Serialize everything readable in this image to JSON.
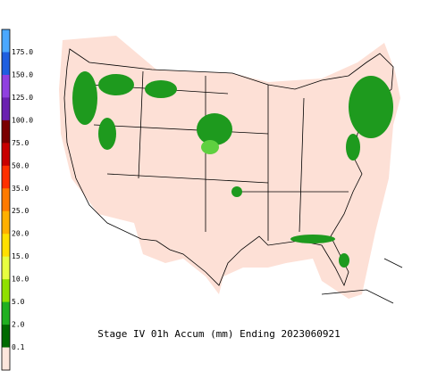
{
  "title": "Stage IV 01h Accum (mm) Ending 2023060921",
  "legend": {
    "labels": [
      "175.0",
      "150.0",
      "125.0",
      "100.0",
      "75.0",
      "50.0",
      "35.0",
      "25.0",
      "20.0",
      "15.0",
      "10.0",
      "5.0",
      "2.0",
      "0.1"
    ],
    "colors": [
      "#4aa8ff",
      "#1f5fe0",
      "#9040e0",
      "#6a20b0",
      "#7a0000",
      "#c80000",
      "#ff3000",
      "#ff7a00",
      "#ffb000",
      "#ffe000",
      "#e8ff40",
      "#90e000",
      "#20b020",
      "#006a00",
      "#fde6dc"
    ]
  }
}
